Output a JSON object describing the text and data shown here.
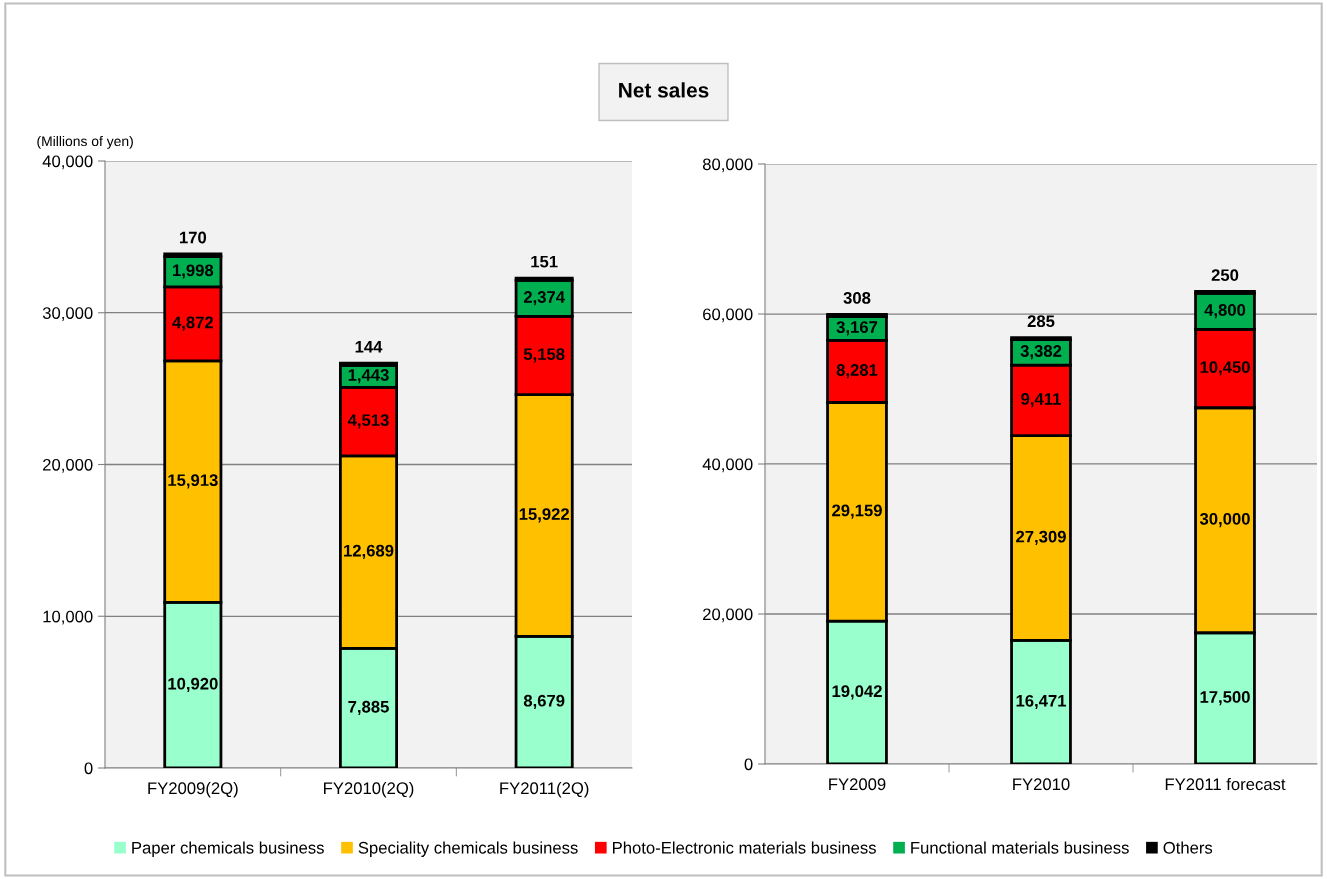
{
  "chart_data": [
    {
      "type": "bar",
      "title": "Net sales",
      "ylabel": "(Millions of yen)",
      "stacked": true,
      "grid": "y",
      "legend": "bottom",
      "categories": [
        "FY2009(2Q)",
        "FY2010(2Q)",
        "FY2011(2Q)"
      ],
      "ylim": [
        0,
        40000
      ],
      "yticks": [
        0,
        {
          "value": 10000,
          "label": "10,000"
        },
        {
          "value": 20000,
          "label": "20,000"
        },
        {
          "value": 30000,
          "label": "30,000"
        },
        {
          "value": 40000,
          "label": "40,000"
        }
      ],
      "series": [
        {
          "name": "Paper chemicals business",
          "color": "#99ffcc",
          "values": [
            10920,
            7885,
            8679
          ],
          "value_labels": [
            "10,920",
            "7,885",
            "8,679"
          ]
        },
        {
          "name": "Speciality chemicals business",
          "color": "#ffc000",
          "values": [
            15913,
            12689,
            15922
          ],
          "value_labels": [
            "15,913",
            "12,689",
            "15,922"
          ]
        },
        {
          "name": "Photo-Electronic materials business",
          "color": "#ff0000",
          "values": [
            4872,
            4513,
            5158
          ],
          "value_labels": [
            "4,872",
            "4,513",
            "5,158"
          ]
        },
        {
          "name": "Functional materials business",
          "color": "#00b050",
          "values": [
            1998,
            1443,
            2374
          ],
          "value_labels": [
            "1,998",
            "1,443",
            "2,374"
          ]
        },
        {
          "name": "Others",
          "color": "#000000",
          "values": [
            170,
            144,
            151
          ],
          "value_labels": [
            "170",
            "144",
            "151"
          ]
        }
      ]
    },
    {
      "type": "bar",
      "stacked": true,
      "grid": "y",
      "categories": [
        "FY2009",
        "FY2010",
        "FY2011 forecast"
      ],
      "ylim": [
        0,
        80000
      ],
      "yticks": [
        0,
        {
          "value": 20000,
          "label": "20,000"
        },
        {
          "value": 40000,
          "label": "40,000"
        },
        {
          "value": 60000,
          "label": "60,000"
        },
        {
          "value": 80000,
          "label": "80,000"
        }
      ],
      "series": [
        {
          "color": "#99ffcc",
          "values": [
            19042,
            16471,
            17500
          ],
          "value_labels": [
            "19,042",
            "16,471",
            "17,500"
          ]
        },
        {
          "color": "#ffc000",
          "values": [
            29159,
            27309,
            30000
          ],
          "value_labels": [
            "29,159",
            "27,309",
            "30,000"
          ]
        },
        {
          "color": "#ff0000",
          "values": [
            8281,
            9411,
            10450
          ],
          "value_labels": [
            "8,281",
            "9,411",
            "10,450"
          ]
        },
        {
          "color": "#00b050",
          "values": [
            3167,
            3382,
            4800
          ],
          "value_labels": [
            "3,167",
            "3,382",
            "4,800"
          ]
        },
        {
          "color": "#000000",
          "values": [
            308,
            285,
            250
          ],
          "value_labels": [
            "308",
            "285",
            "250"
          ]
        }
      ]
    }
  ]
}
